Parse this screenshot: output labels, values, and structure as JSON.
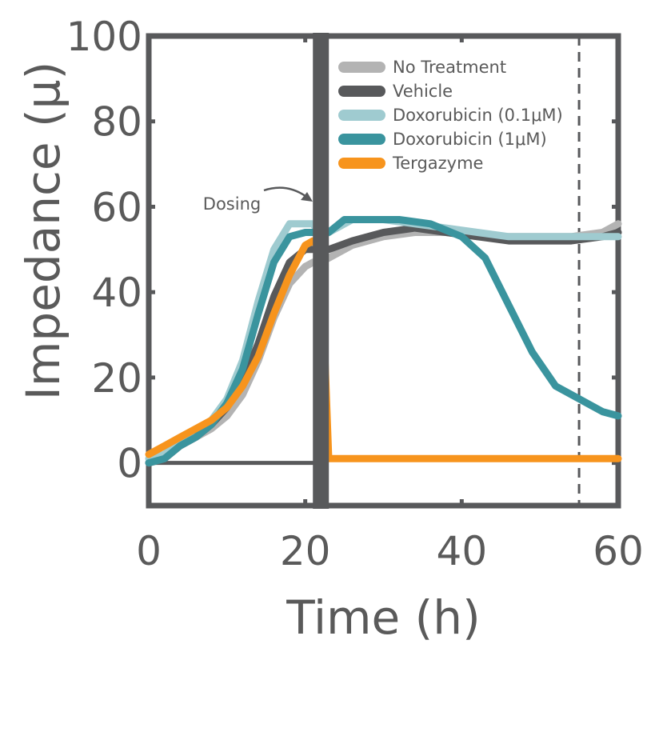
{
  "chart_data": {
    "type": "line",
    "title": "",
    "xlabel": "Time (h)",
    "ylabel": "Impedance (μ)",
    "xlim": [
      0,
      60
    ],
    "ylim": [
      -10,
      100
    ],
    "xticks": [
      "0",
      "20",
      "40",
      "60"
    ],
    "xtick_values": [
      0,
      20,
      40,
      60
    ],
    "yticks": [
      "0",
      "20",
      "40",
      "60",
      "80",
      "100"
    ],
    "ytick_values": [
      0,
      20,
      40,
      60,
      80,
      100
    ],
    "grid": false,
    "legend_position": "top-right",
    "dosing_time": 22,
    "reference_time": 55,
    "annotation": "Dosing",
    "series": [
      {
        "name": "No Treatment",
        "color": "#b3b3b3",
        "x": [
          0,
          2,
          4,
          6,
          8,
          10,
          12,
          14,
          16,
          18,
          20,
          21,
          22,
          23,
          26,
          30,
          34,
          38,
          42,
          46,
          50,
          54,
          58,
          60
        ],
        "y": [
          0,
          1,
          4,
          6,
          8,
          11,
          16,
          24,
          34,
          42,
          46,
          47,
          47,
          48,
          51,
          53,
          54,
          54,
          53,
          53,
          53,
          53,
          54,
          56
        ]
      },
      {
        "name": "Vehicle",
        "color": "#58595b",
        "x": [
          0,
          2,
          4,
          6,
          8,
          10,
          12,
          14,
          16,
          18,
          20,
          21,
          22,
          23,
          26,
          30,
          34,
          38,
          42,
          46,
          50,
          54,
          58,
          60
        ],
        "y": [
          0,
          1,
          4,
          6,
          9,
          13,
          19,
          28,
          39,
          47,
          50,
          50,
          50,
          50,
          52,
          54,
          55,
          54,
          53,
          52,
          52,
          52,
          53,
          54
        ]
      },
      {
        "name": "Doxorubicin (0.1μM)",
        "color": "#9fcbd0",
        "x": [
          0,
          2,
          4,
          6,
          8,
          10,
          12,
          14,
          16,
          18,
          20,
          21,
          22,
          23,
          26,
          30,
          34,
          38,
          42,
          46,
          50,
          54,
          58,
          60
        ],
        "y": [
          1,
          2,
          5,
          7,
          10,
          15,
          24,
          38,
          50,
          56,
          56,
          56,
          53,
          54,
          57,
          57,
          56,
          55,
          54,
          53,
          53,
          53,
          53,
          53
        ]
      },
      {
        "name": "Doxorubicin (1μM)",
        "color": "#3a949e",
        "x": [
          0,
          2,
          4,
          6,
          8,
          10,
          12,
          14,
          16,
          18,
          20,
          21,
          22,
          23,
          25,
          28,
          32,
          36,
          40,
          43,
          46,
          49,
          52,
          55,
          58,
          60
        ],
        "y": [
          0,
          1,
          4,
          6,
          9,
          14,
          22,
          35,
          47,
          53,
          54,
          54,
          54,
          54,
          57,
          57,
          57,
          56,
          53,
          48,
          37,
          26,
          18,
          15,
          12,
          11
        ]
      },
      {
        "name": "Tergazyme",
        "color": "#f7941d",
        "x": [
          0,
          2,
          4,
          6,
          8,
          10,
          12,
          14,
          16,
          18,
          20,
          21,
          22,
          23,
          26,
          30,
          34,
          38,
          42,
          46,
          50,
          54,
          58,
          60
        ],
        "y": [
          2,
          4,
          6,
          8,
          10,
          13,
          18,
          25,
          35,
          44,
          51,
          52,
          50,
          1,
          1,
          1,
          1,
          1,
          1,
          1,
          1,
          1,
          1,
          1
        ]
      }
    ]
  }
}
